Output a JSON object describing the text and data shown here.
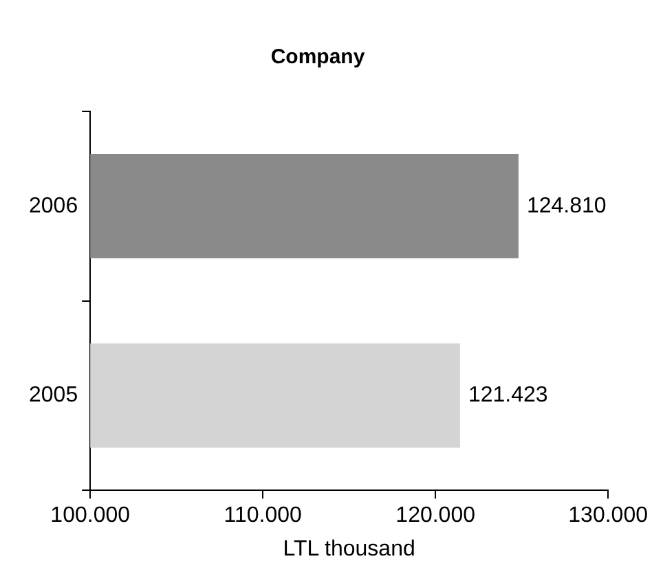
{
  "chart_data": {
    "type": "bar",
    "orientation": "horizontal",
    "title": "Company",
    "xlabel": "LTL thousand",
    "categories": [
      "2006",
      "2005"
    ],
    "values": [
      124810,
      121423
    ],
    "colors": [
      "#8a8a8a",
      "#d4d4d4"
    ],
    "value_labels": [
      "124.810",
      "121.423"
    ],
    "xlim": [
      100000,
      130000
    ],
    "xticks": [
      {
        "value": 100000,
        "label": "100.000"
      },
      {
        "value": 110000,
        "label": "110.000"
      },
      {
        "value": 120000,
        "label": "120.000"
      },
      {
        "value": 130000,
        "label": "130.000"
      }
    ],
    "grid": false,
    "legend": false
  }
}
